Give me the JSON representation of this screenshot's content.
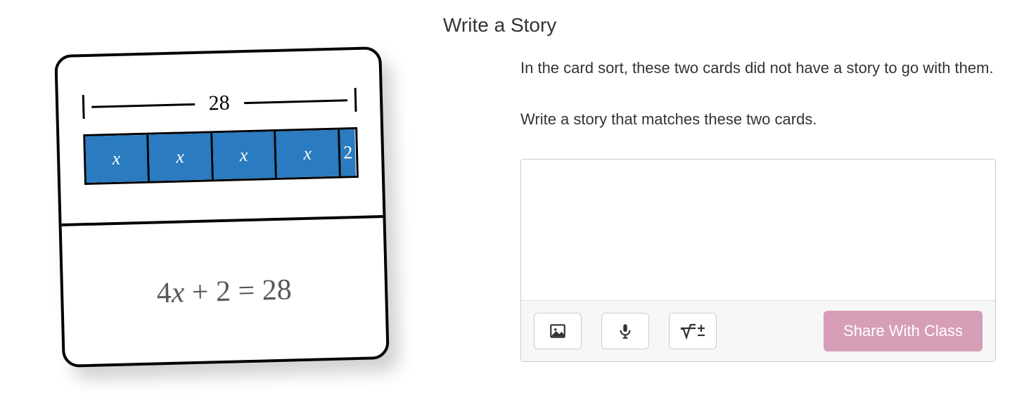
{
  "heading": "Write a Story",
  "prompt": {
    "p1": "In the card sort, these two cards did not have a story to go with them.",
    "p2": "Write a story that matches these two cards."
  },
  "card": {
    "bracket_total": "28",
    "equation_html": "4x + 2 = 28",
    "bar": {
      "fill_color": "#2a7bbf",
      "border_color": "#000000",
      "cells": [
        {
          "label": "x",
          "width_pct": 23.6,
          "italic": true
        },
        {
          "label": "x",
          "width_pct": 23.6,
          "italic": true
        },
        {
          "label": "x",
          "width_pct": 23.6,
          "italic": true
        },
        {
          "label": "x",
          "width_pct": 23.6,
          "italic": true
        },
        {
          "label": "2",
          "width_pct": 5.6,
          "italic": false
        }
      ]
    }
  },
  "answer": {
    "value": "",
    "placeholder": ""
  },
  "toolbar": {
    "share_label": "Share With Class",
    "share_bg": "#d79eb8",
    "share_fg": "#ffffff"
  }
}
